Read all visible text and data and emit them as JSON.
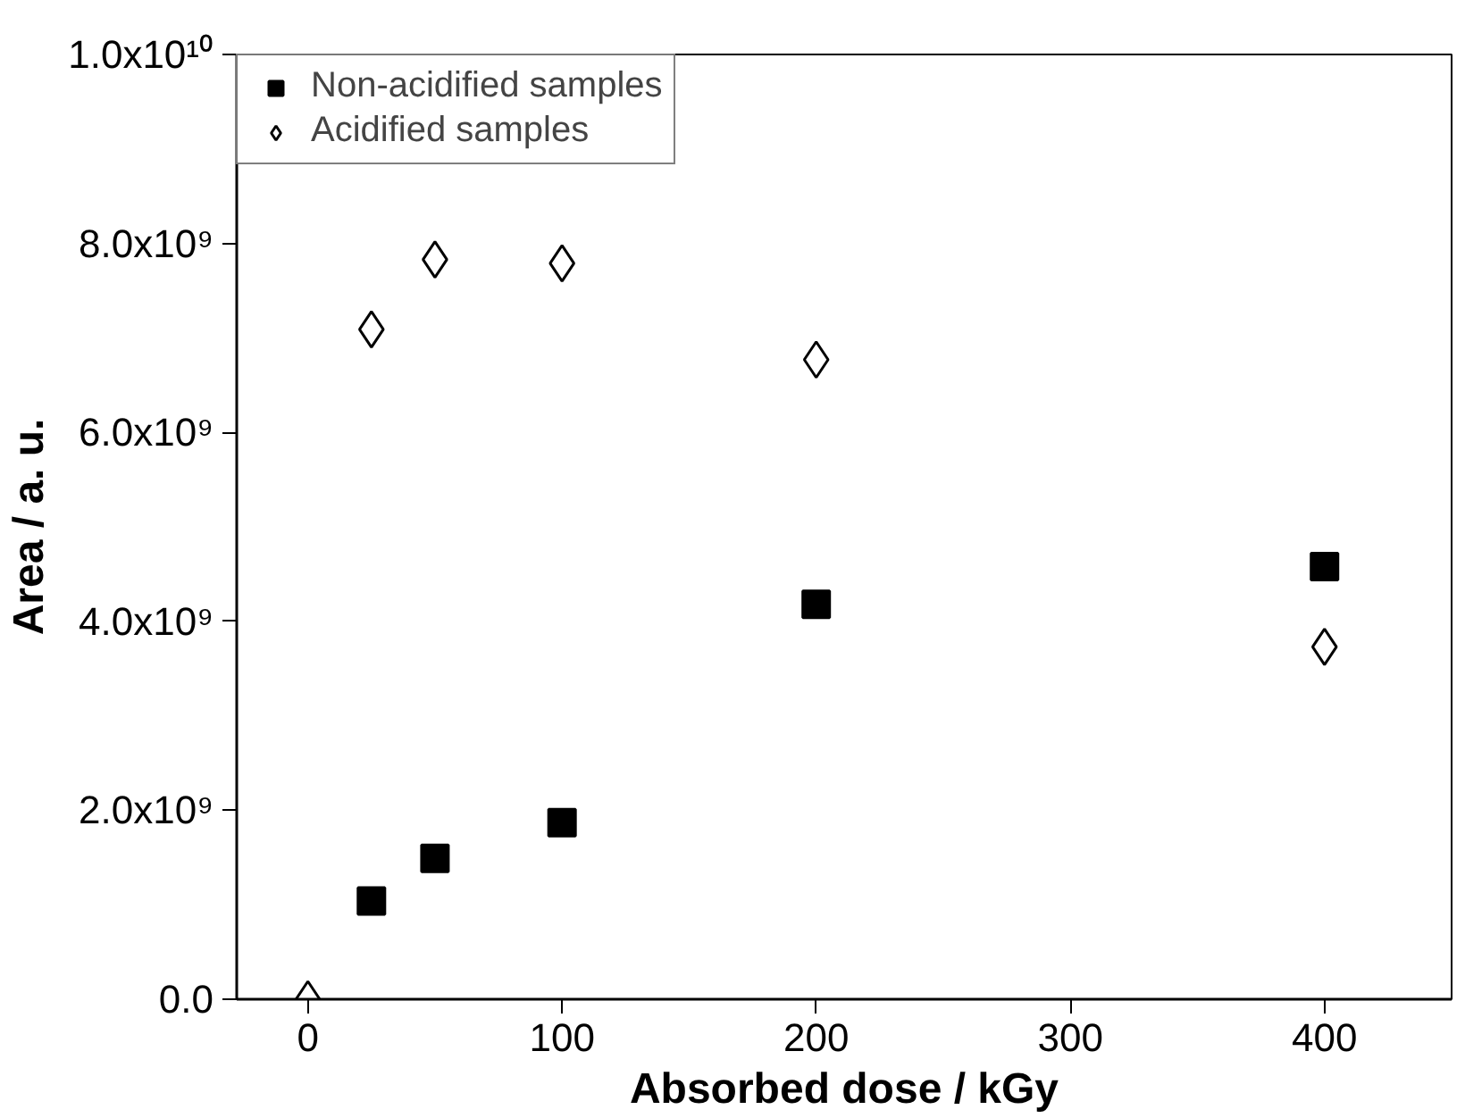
{
  "chart_data": {
    "type": "scatter",
    "xlabel": "Absorbed dose / kGy",
    "ylabel": "Area / a. u.",
    "x": [
      0,
      25,
      50,
      100,
      200,
      400
    ],
    "series": [
      {
        "name": "Non-acidified samples",
        "color": "#000000",
        "marker": "square",
        "values": [
          null,
          1040000000.0,
          1490000000.0,
          1870000000.0,
          4180000000.0,
          4580000000.0
        ]
      },
      {
        "name": "Acidified samples",
        "color": "#000000",
        "marker": "diamond",
        "values": [
          0,
          7090000000.0,
          7830000000.0,
          7790000000.0,
          6770000000.0,
          3730000000.0
        ]
      }
    ],
    "xlim": [
      -28,
      450
    ],
    "ylim": [
      0,
      10000000000.0
    ],
    "xticks": [
      0,
      100,
      200,
      300,
      400
    ],
    "yticks": [
      {
        "value": 0,
        "label": "0.0"
      },
      {
        "value": 2000000000.0,
        "label": "2.0x10⁹"
      },
      {
        "value": 4000000000.0,
        "label": "4.0x10⁹"
      },
      {
        "value": 6000000000.0,
        "label": "6.0x10⁹"
      },
      {
        "value": 8000000000.0,
        "label": "8.0x10⁹"
      },
      {
        "value": 10000000000.0,
        "label": "1.0x10¹⁰"
      }
    ],
    "grid": false,
    "legend": "top left"
  }
}
